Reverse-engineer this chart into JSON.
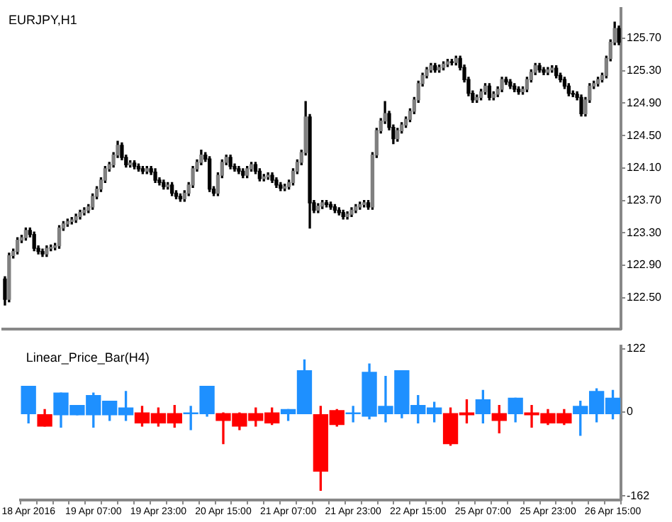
{
  "chart_data": [
    {
      "type": "candlestick",
      "title": "EURJPY,H1",
      "tick_labels": "y",
      "categories": [
        null,
        null,
        null,
        null,
        null,
        null,
        null,
        null,
        null,
        null,
        null,
        null,
        null,
        null,
        null,
        null,
        null,
        null,
        null,
        null,
        null,
        null,
        null,
        null,
        null,
        null,
        null,
        null,
        null,
        null,
        null,
        null,
        null,
        null,
        null,
        null,
        null,
        null,
        null,
        null,
        null,
        null,
        null,
        null,
        null,
        null,
        null,
        null,
        null,
        null,
        null,
        null,
        null,
        null,
        null,
        null,
        null,
        null,
        null,
        null,
        null,
        null,
        null,
        null,
        null,
        null,
        null,
        null,
        null,
        null,
        null,
        null,
        null,
        null,
        null,
        null,
        null,
        null,
        null,
        null,
        null,
        null,
        null,
        null,
        null,
        null,
        null,
        null,
        null,
        null,
        null,
        null,
        null,
        null,
        null,
        null,
        null,
        null,
        null,
        null,
        null,
        null,
        null,
        null,
        null,
        null,
        null,
        null,
        null,
        null,
        null,
        null,
        null,
        null,
        null,
        null,
        null,
        null,
        null,
        null,
        null,
        null,
        null,
        null,
        null,
        null,
        null,
        null,
        null,
        null,
        null,
        null,
        null,
        null,
        null,
        null,
        null,
        null,
        null,
        null,
        null,
        null,
        null,
        null,
        null,
        null,
        null,
        null
      ],
      "ohlc": [
        [
          122.73,
          122.76,
          122.41,
          122.48
        ],
        [
          122.48,
          123.05,
          122.45,
          123.02
        ],
        [
          123.02,
          123.1,
          122.99,
          123.07
        ],
        [
          123.07,
          123.24,
          123.04,
          123.21
        ],
        [
          123.21,
          123.27,
          123.18,
          123.24
        ],
        [
          123.24,
          123.36,
          123.21,
          123.33
        ],
        [
          123.33,
          123.36,
          123.25,
          123.28
        ],
        [
          123.28,
          123.31,
          123.08,
          123.11
        ],
        [
          123.11,
          123.14,
          123.04,
          123.07
        ],
        [
          123.07,
          123.1,
          123.01,
          123.04
        ],
        [
          123.04,
          123.14,
          123.01,
          123.11
        ],
        [
          123.11,
          123.15,
          123.08,
          123.12
        ],
        [
          123.12,
          123.17,
          123.09,
          123.14
        ],
        [
          123.14,
          123.39,
          123.11,
          123.36
        ],
        [
          123.36,
          123.44,
          123.33,
          123.41
        ],
        [
          123.41,
          123.47,
          123.38,
          123.44
        ],
        [
          123.44,
          123.49,
          123.41,
          123.46
        ],
        [
          123.46,
          123.53,
          123.43,
          123.5
        ],
        [
          123.5,
          123.58,
          123.47,
          123.55
        ],
        [
          123.55,
          123.61,
          123.52,
          123.58
        ],
        [
          123.58,
          123.65,
          123.55,
          123.62
        ],
        [
          123.62,
          123.78,
          123.59,
          123.75
        ],
        [
          123.75,
          123.87,
          123.72,
          123.84
        ],
        [
          123.84,
          123.98,
          123.81,
          123.95
        ],
        [
          123.95,
          124.12,
          123.92,
          124.09
        ],
        [
          124.09,
          124.17,
          124.06,
          124.14
        ],
        [
          124.14,
          124.29,
          124.11,
          124.26
        ],
        [
          124.26,
          124.43,
          124.23,
          124.38
        ],
        [
          124.38,
          124.41,
          124.2,
          124.23
        ],
        [
          124.23,
          124.26,
          124.11,
          124.14
        ],
        [
          124.14,
          124.19,
          124.11,
          124.16
        ],
        [
          124.16,
          124.19,
          124.09,
          124.12
        ],
        [
          124.12,
          124.15,
          124.06,
          124.09
        ],
        [
          124.09,
          124.12,
          124.03,
          124.06
        ],
        [
          124.06,
          124.12,
          124.03,
          124.09
        ],
        [
          124.09,
          124.12,
          124.02,
          124.05
        ],
        [
          124.05,
          124.09,
          123.92,
          123.95
        ],
        [
          123.95,
          123.98,
          123.89,
          123.92
        ],
        [
          123.92,
          123.95,
          123.84,
          123.87
        ],
        [
          123.87,
          123.92,
          123.84,
          123.89
        ],
        [
          123.89,
          123.92,
          123.76,
          123.79
        ],
        [
          123.79,
          123.82,
          123.72,
          123.75
        ],
        [
          123.75,
          123.78,
          123.69,
          123.72
        ],
        [
          123.72,
          123.82,
          123.69,
          123.79
        ],
        [
          123.79,
          123.92,
          123.76,
          123.89
        ],
        [
          123.89,
          124.12,
          123.86,
          124.09
        ],
        [
          124.09,
          124.2,
          124.06,
          124.17
        ],
        [
          124.17,
          124.32,
          124.14,
          124.26
        ],
        [
          124.26,
          124.29,
          124.18,
          124.21
        ],
        [
          124.21,
          124.24,
          123.81,
          123.84
        ],
        [
          123.84,
          123.87,
          123.76,
          123.79
        ],
        [
          123.79,
          124.04,
          123.76,
          124.01
        ],
        [
          124.01,
          124.2,
          123.98,
          124.17
        ],
        [
          124.17,
          124.26,
          124.14,
          124.23
        ],
        [
          124.23,
          124.26,
          124.09,
          124.12
        ],
        [
          124.12,
          124.15,
          124.06,
          124.09
        ],
        [
          124.09,
          124.12,
          124.03,
          124.06
        ],
        [
          124.06,
          124.09,
          123.98,
          124.01
        ],
        [
          124.01,
          124.12,
          123.98,
          124.09
        ],
        [
          124.09,
          124.17,
          124.06,
          124.14
        ],
        [
          124.14,
          124.17,
          124.03,
          124.06
        ],
        [
          124.06,
          124.09,
          123.94,
          123.97
        ],
        [
          123.97,
          124.02,
          123.94,
          123.99
        ],
        [
          123.99,
          124.04,
          123.96,
          124.01
        ],
        [
          124.01,
          124.04,
          123.92,
          123.95
        ],
        [
          123.95,
          123.98,
          123.86,
          123.89
        ],
        [
          123.89,
          123.92,
          123.82,
          123.85
        ],
        [
          123.85,
          123.9,
          123.82,
          123.87
        ],
        [
          123.87,
          123.95,
          123.84,
          123.92
        ],
        [
          123.92,
          124.09,
          123.89,
          124.06
        ],
        [
          124.06,
          124.2,
          124.03,
          124.17
        ],
        [
          124.17,
          124.32,
          124.14,
          124.29
        ],
        [
          124.29,
          124.92,
          124.26,
          124.73
        ],
        [
          124.73,
          124.76,
          123.36,
          123.67
        ],
        [
          123.67,
          123.7,
          123.55,
          123.58
        ],
        [
          123.58,
          123.66,
          123.55,
          123.63
        ],
        [
          123.63,
          123.7,
          123.6,
          123.67
        ],
        [
          123.67,
          123.7,
          123.62,
          123.65
        ],
        [
          123.65,
          123.68,
          123.59,
          123.62
        ],
        [
          123.62,
          123.65,
          123.55,
          123.58
        ],
        [
          123.58,
          123.61,
          123.52,
          123.55
        ],
        [
          123.55,
          123.58,
          123.47,
          123.5
        ],
        [
          123.5,
          123.56,
          123.47,
          123.53
        ],
        [
          123.53,
          123.61,
          123.5,
          123.58
        ],
        [
          123.58,
          123.65,
          123.55,
          123.62
        ],
        [
          123.62,
          123.68,
          123.59,
          123.65
        ],
        [
          123.65,
          123.7,
          123.62,
          123.67
        ],
        [
          123.67,
          123.7,
          123.59,
          123.62
        ],
        [
          123.62,
          124.29,
          123.59,
          124.26
        ],
        [
          124.26,
          124.59,
          124.23,
          124.56
        ],
        [
          124.56,
          124.71,
          124.53,
          124.68
        ],
        [
          124.68,
          124.92,
          124.65,
          124.77
        ],
        [
          124.77,
          124.8,
          124.57,
          124.6
        ],
        [
          124.6,
          124.63,
          124.4,
          124.46
        ],
        [
          124.46,
          124.59,
          124.43,
          124.56
        ],
        [
          124.56,
          124.66,
          124.53,
          124.63
        ],
        [
          124.63,
          124.73,
          124.6,
          124.7
        ],
        [
          124.7,
          124.83,
          124.67,
          124.8
        ],
        [
          124.8,
          124.97,
          124.77,
          124.94
        ],
        [
          124.94,
          125.17,
          124.91,
          125.14
        ],
        [
          125.14,
          125.27,
          125.11,
          125.24
        ],
        [
          125.24,
          125.34,
          125.21,
          125.31
        ],
        [
          125.31,
          125.39,
          125.28,
          125.36
        ],
        [
          125.36,
          125.39,
          125.28,
          125.31
        ],
        [
          125.31,
          125.37,
          125.28,
          125.34
        ],
        [
          125.34,
          125.41,
          125.31,
          125.38
        ],
        [
          125.38,
          125.44,
          125.35,
          125.41
        ],
        [
          125.41,
          125.44,
          125.37,
          125.4
        ],
        [
          125.4,
          125.48,
          125.37,
          125.45
        ],
        [
          125.45,
          125.48,
          125.31,
          125.34
        ],
        [
          125.34,
          125.37,
          125.16,
          125.19
        ],
        [
          125.19,
          125.22,
          124.99,
          125.02
        ],
        [
          125.02,
          125.05,
          124.91,
          124.94
        ],
        [
          124.94,
          125.0,
          124.91,
          124.97
        ],
        [
          124.97,
          125.07,
          124.94,
          125.04
        ],
        [
          125.04,
          125.14,
          125.01,
          125.11
        ],
        [
          125.11,
          125.14,
          124.94,
          124.97
        ],
        [
          124.97,
          125.04,
          124.94,
          125.01
        ],
        [
          125.01,
          125.1,
          124.98,
          125.07
        ],
        [
          125.07,
          125.22,
          125.04,
          125.19
        ],
        [
          125.19,
          125.22,
          125.13,
          125.16
        ],
        [
          125.16,
          125.19,
          125.08,
          125.11
        ],
        [
          125.11,
          125.14,
          125.04,
          125.07
        ],
        [
          125.07,
          125.1,
          125.01,
          125.04
        ],
        [
          125.04,
          125.1,
          125.01,
          125.07
        ],
        [
          125.07,
          125.22,
          125.04,
          125.19
        ],
        [
          125.19,
          125.31,
          125.16,
          125.28
        ],
        [
          125.28,
          125.39,
          125.25,
          125.36
        ],
        [
          125.36,
          125.39,
          125.28,
          125.31
        ],
        [
          125.31,
          125.34,
          125.25,
          125.28
        ],
        [
          125.28,
          125.34,
          125.25,
          125.31
        ],
        [
          125.31,
          125.36,
          125.28,
          125.33
        ],
        [
          125.33,
          125.36,
          125.21,
          125.24
        ],
        [
          125.24,
          125.27,
          125.16,
          125.19
        ],
        [
          125.19,
          125.22,
          125.08,
          125.11
        ],
        [
          125.11,
          125.14,
          124.99,
          125.02
        ],
        [
          125.02,
          125.05,
          124.98,
          125.01
        ],
        [
          125.01,
          125.04,
          124.94,
          124.97
        ],
        [
          124.97,
          125.0,
          124.74,
          124.77
        ],
        [
          124.77,
          124.97,
          124.74,
          124.94
        ],
        [
          124.94,
          125.14,
          124.91,
          125.11
        ],
        [
          125.11,
          125.17,
          125.08,
          125.14
        ],
        [
          125.14,
          125.22,
          125.11,
          125.19
        ],
        [
          125.19,
          125.27,
          125.16,
          125.24
        ],
        [
          125.24,
          125.48,
          125.21,
          125.45
        ],
        [
          125.45,
          125.68,
          125.42,
          125.65
        ],
        [
          125.65,
          125.9,
          125.62,
          125.82
        ],
        [
          125.82,
          125.85,
          125.62,
          125.65
        ]
      ],
      "colors": [
        "#000000",
        "#808080",
        "#808080",
        "#808080",
        "#808080",
        "#808080",
        "#000000",
        "#000000",
        "#000000",
        "#000000",
        "#808080",
        "#808080",
        "#808080",
        "#808080",
        "#808080",
        "#808080",
        "#808080",
        "#808080",
        "#808080",
        "#808080",
        "#808080",
        "#808080",
        "#808080",
        "#808080",
        "#808080",
        "#808080",
        "#808080",
        "#808080",
        "#000000",
        "#000000",
        "#808080",
        "#000000",
        "#000000",
        "#000000",
        "#808080",
        "#000000",
        "#000000",
        "#000000",
        "#000000",
        "#808080",
        "#000000",
        "#000000",
        "#000000",
        "#808080",
        "#808080",
        "#808080",
        "#808080",
        "#808080",
        "#000000",
        "#000000",
        "#000000",
        "#808080",
        "#808080",
        "#808080",
        "#000000",
        "#000000",
        "#000000",
        "#000000",
        "#808080",
        "#808080",
        "#000000",
        "#000000",
        "#808080",
        "#808080",
        "#000000",
        "#000000",
        "#000000",
        "#808080",
        "#808080",
        "#808080",
        "#808080",
        "#808080",
        "#808080",
        "#000000",
        "#000000",
        "#808080",
        "#808080",
        "#000000",
        "#000000",
        "#000000",
        "#000000",
        "#000000",
        "#808080",
        "#808080",
        "#808080",
        "#808080",
        "#808080",
        "#000000",
        "#808080",
        "#808080",
        "#808080",
        "#808080",
        "#000000",
        "#000000",
        "#808080",
        "#808080",
        "#808080",
        "#808080",
        "#808080",
        "#808080",
        "#808080",
        "#808080",
        "#808080",
        "#000000",
        "#808080",
        "#808080",
        "#808080",
        "#000000",
        "#808080",
        "#000000",
        "#000000",
        "#000000",
        "#000000",
        "#808080",
        "#808080",
        "#808080",
        "#000000",
        "#808080",
        "#808080",
        "#808080",
        "#000000",
        "#000000",
        "#000000",
        "#000000",
        "#808080",
        "#808080",
        "#808080",
        "#808080",
        "#000000",
        "#000000",
        "#808080",
        "#808080",
        "#000000",
        "#000000",
        "#000000",
        "#000000",
        "#000000",
        "#000000",
        "#000000",
        "#808080",
        "#808080",
        "#808080",
        "#808080",
        "#808080",
        "#808080",
        "#808080",
        "#808080",
        "#000000"
      ],
      "ylim": [
        122.11,
        126.07
      ],
      "yticks": [
        {
          "value": 122.5,
          "label": "122.50"
        },
        {
          "value": 122.9,
          "label": "122.90"
        },
        {
          "value": 123.3,
          "label": "123.30"
        },
        {
          "value": 123.7,
          "label": "123.70"
        },
        {
          "value": 124.1,
          "label": "124.10"
        },
        {
          "value": 124.5,
          "label": "124.50"
        },
        {
          "value": 124.9,
          "label": "124.90"
        },
        {
          "value": 125.3,
          "label": "125.30"
        },
        {
          "value": 125.7,
          "label": "125.70"
        }
      ]
    },
    {
      "type": "candlestick",
      "title": "Linear_Price_Bar(H4)",
      "categories": [
        "18 Apr 2016",
        null,
        null,
        null,
        "19 Apr 07:00",
        null,
        null,
        null,
        "19 Apr 23:00",
        null,
        null,
        null,
        "20 Apr 15:00",
        null,
        null,
        null,
        "21 Apr 07:00",
        null,
        null,
        null,
        "21 Apr 23:00",
        null,
        null,
        null,
        "22 Apr 15:00",
        null,
        null,
        null,
        "25 Apr 07:00",
        null,
        null,
        null,
        "25 Apr 23:00",
        null,
        null,
        null,
        "26 Apr 15:00"
      ],
      "ohlc": [
        [
          -3,
          50,
          -21,
          50
        ],
        [
          -5,
          5,
          -27,
          -27
        ],
        [
          -5,
          37,
          -29,
          37
        ],
        [
          -5,
          13,
          -5,
          13
        ],
        [
          -5,
          37,
          -29,
          32
        ],
        [
          -5,
          21,
          -16,
          21
        ],
        [
          -5,
          40,
          -16,
          8
        ],
        [
          0,
          11,
          -27,
          -21
        ],
        [
          -3,
          8,
          -27,
          -21
        ],
        [
          -3,
          13,
          -29,
          -21
        ],
        [
          -3,
          11,
          -34,
          0
        ],
        [
          -3,
          50,
          -8,
          50
        ],
        [
          -3,
          0,
          -61,
          -16
        ],
        [
          -3,
          0,
          -34,
          -27
        ],
        [
          -3,
          8,
          -27,
          -16
        ],
        [
          0,
          8,
          -24,
          -21
        ],
        [
          -3,
          5,
          -16,
          5
        ],
        [
          -3,
          101,
          -3,
          80
        ],
        [
          -5,
          11,
          -151,
          -114
        ],
        [
          3,
          5,
          -27,
          -24
        ],
        [
          -3,
          11,
          -19,
          0
        ],
        [
          -8,
          93,
          -13,
          77
        ],
        [
          -3,
          69,
          -19,
          11
        ],
        [
          -3,
          80,
          -11,
          80
        ],
        [
          -3,
          32,
          -21,
          13
        ],
        [
          -3,
          19,
          -19,
          8
        ],
        [
          -3,
          8,
          -64,
          -61
        ],
        [
          0,
          24,
          -21,
          -5
        ],
        [
          -3,
          42,
          -21,
          24
        ],
        [
          -3,
          13,
          -40,
          -16
        ],
        [
          -3,
          27,
          -19,
          27
        ],
        [
          0,
          13,
          -29,
          -5
        ],
        [
          -3,
          5,
          -24,
          -21
        ],
        [
          -3,
          5,
          -24,
          -21
        ],
        [
          -3,
          21,
          -45,
          11
        ],
        [
          -3,
          45,
          -19,
          40
        ],
        [
          -3,
          42,
          -13,
          27
        ]
      ],
      "colors": [
        "#1e90ff",
        "#ff0000",
        "#1e90ff",
        "#1e90ff",
        "#1e90ff",
        "#1e90ff",
        "#1e90ff",
        "#ff0000",
        "#ff0000",
        "#ff0000",
        "#1e90ff",
        "#1e90ff",
        "#ff0000",
        "#ff0000",
        "#ff0000",
        "#ff0000",
        "#1e90ff",
        "#1e90ff",
        "#ff0000",
        "#ff0000",
        "#1e90ff",
        "#1e90ff",
        "#1e90ff",
        "#1e90ff",
        "#1e90ff",
        "#1e90ff",
        "#ff0000",
        "#ff0000",
        "#1e90ff",
        "#ff0000",
        "#1e90ff",
        "#ff0000",
        "#ff0000",
        "#ff0000",
        "#1e90ff",
        "#1e90ff",
        "#1e90ff"
      ],
      "ylim": [
        -170,
        128
      ],
      "yticks": [
        -162,
        0,
        122
      ]
    }
  ]
}
